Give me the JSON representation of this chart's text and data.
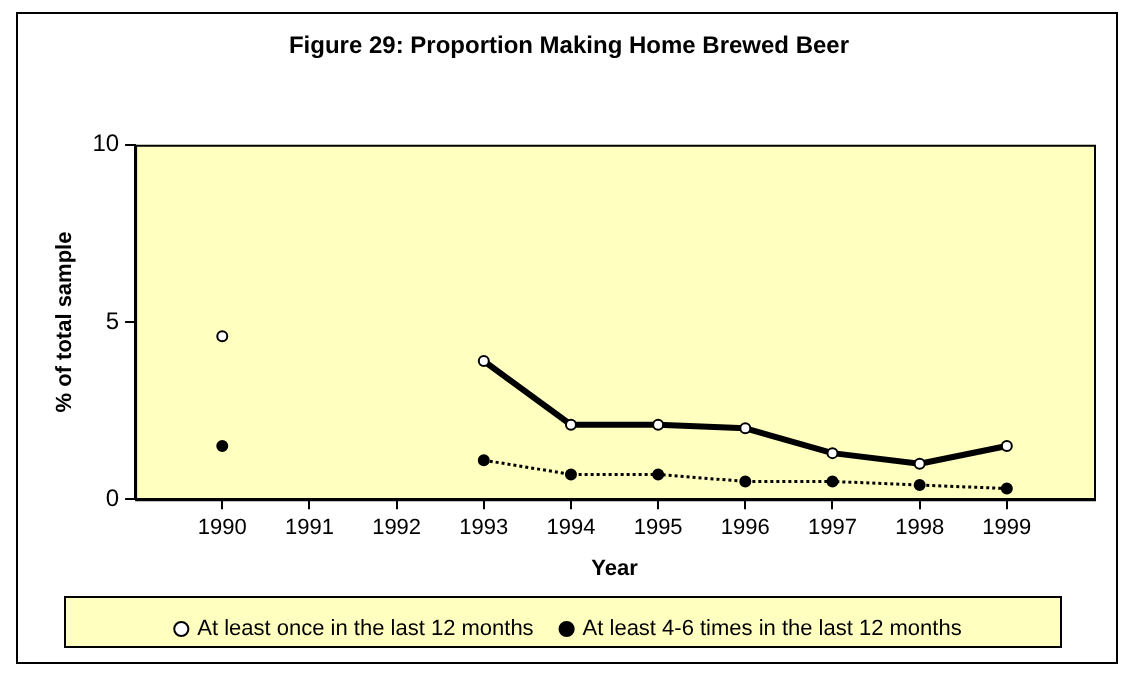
{
  "chart_data": {
    "type": "line",
    "title": "Figure 29: Proportion Making Home Brewed Beer",
    "xlabel": "Year",
    "ylabel": "% of total sample",
    "x": [
      1990,
      1991,
      1992,
      1993,
      1994,
      1995,
      1996,
      1997,
      1998,
      1999
    ],
    "xlim": [
      1989,
      2000
    ],
    "xticks": [
      1990,
      1991,
      1992,
      1993,
      1994,
      1995,
      1996,
      1997,
      1998,
      1999
    ],
    "ylim": [
      0,
      10
    ],
    "yticks": [
      0,
      5,
      10
    ],
    "series": [
      {
        "name": "At least once in the last 12 months",
        "color": "#000000",
        "line_style": "solid",
        "values": [
          4.6,
          null,
          null,
          3.9,
          2.1,
          2.1,
          2.0,
          1.3,
          1.0,
          1.5
        ]
      },
      {
        "name": "At least 4-6 times in the last 12 months",
        "color": "#000000",
        "line_style": "dotted",
        "values": [
          1.5,
          null,
          null,
          1.1,
          0.7,
          0.7,
          0.5,
          0.5,
          0.4,
          0.3
        ]
      }
    ],
    "marker": "circle",
    "grid": false,
    "legend": "bottom"
  }
}
